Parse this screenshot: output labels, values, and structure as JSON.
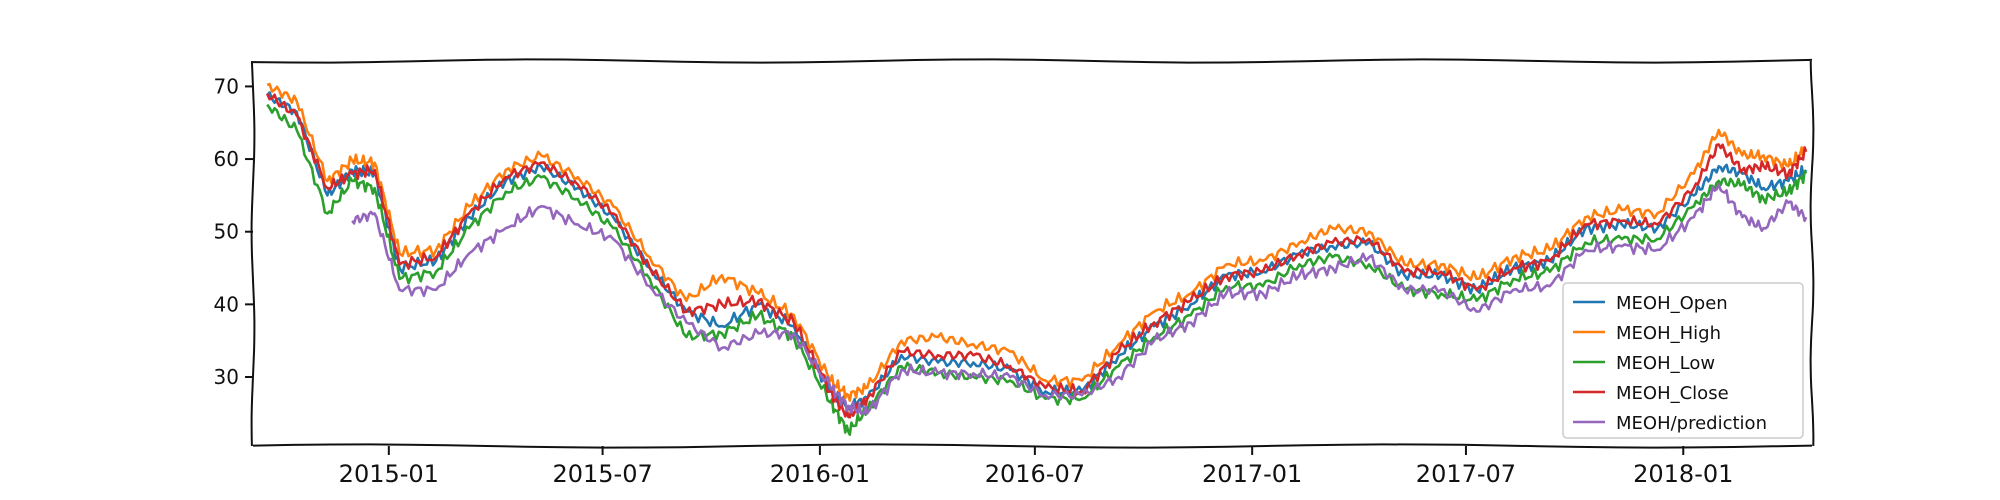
{
  "chart_data": {
    "type": "line",
    "title": "",
    "xlabel": "",
    "ylabel": "",
    "x_range": [
      "2014-09-08",
      "2018-04-20"
    ],
    "ylim": [
      20.5,
      73.5
    ],
    "x_ticks": [
      "2015-01",
      "2015-07",
      "2016-01",
      "2016-07",
      "2017-01",
      "2017-07",
      "2018-01"
    ],
    "y_ticks": [
      30,
      40,
      50,
      60,
      70
    ],
    "grid": false,
    "legend_position": "lower-right",
    "x": [
      "2014-09-20",
      "2014-10-15",
      "2014-11-10",
      "2014-12-01",
      "2014-12-20",
      "2015-01-10",
      "2015-02-10",
      "2015-03-10",
      "2015-04-10",
      "2015-05-10",
      "2015-06-10",
      "2015-07-10",
      "2015-08-10",
      "2015-09-10",
      "2015-10-10",
      "2015-11-10",
      "2015-12-10",
      "2016-01-10",
      "2016-01-25",
      "2016-02-10",
      "2016-03-10",
      "2016-04-10",
      "2016-05-10",
      "2016-06-10",
      "2016-07-10",
      "2016-08-10",
      "2016-09-10",
      "2016-10-10",
      "2016-11-10",
      "2016-12-10",
      "2017-01-10",
      "2017-02-10",
      "2017-03-10",
      "2017-04-10",
      "2017-05-10",
      "2017-06-10",
      "2017-07-10",
      "2017-08-10",
      "2017-09-10",
      "2017-10-10",
      "2017-11-10",
      "2017-12-10",
      "2018-01-10",
      "2018-01-31",
      "2018-02-20",
      "2018-03-10",
      "2018-03-31",
      "2018-04-15"
    ],
    "series": [
      {
        "name": "MEOH_Open",
        "color": "#1f77b4",
        "values": [
          68.8,
          66.5,
          55.0,
          58.5,
          58.0,
          45.0,
          46.0,
          52.0,
          57.0,
          59.0,
          56.0,
          52.0,
          45.0,
          39.0,
          37.0,
          40.0,
          37.0,
          28.0,
          26.0,
          27.0,
          33.0,
          32.0,
          32.0,
          31.0,
          28.0,
          28.0,
          33.0,
          37.0,
          40.0,
          44.0,
          44.5,
          47.0,
          48.0,
          48.5,
          44.0,
          44.0,
          42.0,
          45.0,
          46.0,
          50.5,
          51.0,
          50.5,
          55.0,
          59.0,
          58.0,
          56.0,
          57.0,
          58.5
        ]
      },
      {
        "name": "MEOH_High",
        "color": "#ff7f0e",
        "values": [
          70.2,
          68.0,
          57.0,
          59.8,
          59.5,
          47.0,
          47.5,
          53.5,
          58.5,
          60.5,
          57.5,
          53.5,
          46.5,
          40.5,
          44.0,
          41.5,
          38.5,
          29.5,
          27.5,
          28.5,
          35.0,
          35.5,
          34.5,
          33.5,
          29.5,
          29.5,
          34.5,
          39.0,
          41.5,
          45.5,
          46.0,
          48.5,
          50.5,
          50.0,
          45.5,
          45.5,
          43.5,
          46.5,
          47.5,
          52.0,
          53.0,
          52.5,
          58.0,
          64.0,
          60.5,
          60.5,
          59.0,
          61.5
        ]
      },
      {
        "name": "MEOH_Low",
        "color": "#2ca02c",
        "values": [
          67.5,
          64.0,
          52.5,
          57.0,
          56.0,
          43.5,
          44.5,
          50.5,
          55.5,
          57.5,
          54.5,
          50.5,
          43.5,
          35.5,
          36.0,
          38.5,
          35.5,
          26.5,
          22.5,
          25.5,
          31.5,
          30.5,
          30.0,
          29.5,
          27.0,
          27.0,
          31.5,
          35.5,
          38.5,
          42.5,
          42.5,
          45.5,
          46.5,
          45.5,
          42.0,
          41.5,
          40.5,
          43.5,
          44.5,
          48.5,
          49.0,
          49.0,
          53.5,
          57.0,
          56.5,
          54.5,
          55.5,
          58.0
        ]
      },
      {
        "name": "MEOH_Close",
        "color": "#d62728",
        "values": [
          69.0,
          66.0,
          56.0,
          58.0,
          58.5,
          45.5,
          46.5,
          52.5,
          57.5,
          59.5,
          56.5,
          52.5,
          45.0,
          39.0,
          40.0,
          40.5,
          37.5,
          28.0,
          24.5,
          27.0,
          33.5,
          33.0,
          33.0,
          31.5,
          28.5,
          28.0,
          33.5,
          37.5,
          40.5,
          44.0,
          44.5,
          47.0,
          48.5,
          49.0,
          44.5,
          44.5,
          42.0,
          45.0,
          46.0,
          51.0,
          51.5,
          51.0,
          56.0,
          62.0,
          58.5,
          59.0,
          58.0,
          61.0
        ]
      },
      {
        "name": "MEOH/prediction",
        "color": "#9467bd",
        "values": [
          null,
          null,
          null,
          51.5,
          52.5,
          42.0,
          42.0,
          47.0,
          50.5,
          53.5,
          51.0,
          49.0,
          42.5,
          37.5,
          34.0,
          36.0,
          36.0,
          28.5,
          26.0,
          25.0,
          31.0,
          30.5,
          30.5,
          30.0,
          27.5,
          27.5,
          30.0,
          35.0,
          37.5,
          41.5,
          41.5,
          44.0,
          45.0,
          46.5,
          42.0,
          42.0,
          39.0,
          42.0,
          42.5,
          47.5,
          48.0,
          47.5,
          52.0,
          56.5,
          52.0,
          50.5,
          54.0,
          52.0
        ]
      }
    ]
  }
}
